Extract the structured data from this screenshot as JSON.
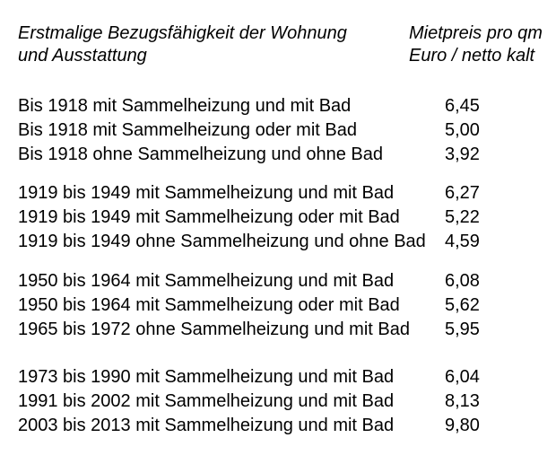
{
  "page": {
    "background_color": "#ffffff",
    "text_color": "#000000"
  },
  "header": {
    "left": [
      "Erstmalige Bezugsfähigkeit der Wohnung",
      "und Ausstattung"
    ],
    "right": [
      "Mietpreis pro qm",
      "Euro / netto kalt"
    ]
  },
  "groups": [
    {
      "rows": [
        {
          "label": "Bis 1918 mit Sammelheizung und mit Bad",
          "value": "6,45"
        },
        {
          "label": "Bis 1918 mit Sammelheizung oder mit Bad",
          "value": "5,00"
        },
        {
          "label": "Bis 1918 ohne Sammelheizung und ohne Bad",
          "value": "3,92"
        }
      ]
    },
    {
      "rows": [
        {
          "label": "1919 bis 1949 mit Sammelheizung und mit Bad",
          "value": "6,27"
        },
        {
          "label": "1919 bis 1949 mit Sammelheizung oder mit Bad",
          "value": "5,22"
        },
        {
          "label": "1919 bis 1949 ohne Sammelheizung und ohne Bad",
          "value": "4,59"
        }
      ]
    },
    {
      "rows": [
        {
          "label": "1950 bis 1964 mit Sammelheizung und mit Bad",
          "value": "6,08"
        },
        {
          "label": "1950 bis 1964 mit Sammelheizung oder mit Bad",
          "value": "5,62"
        },
        {
          "label": "1965 bis 1972 ohne Sammelheizung und mit Bad",
          "value": "5,95"
        }
      ]
    },
    {
      "rows": [
        {
          "label": "1973 bis 1990 mit Sammelheizung und mit Bad",
          "value": "6,04"
        },
        {
          "label": "1991 bis 2002 mit Sammelheizung und mit Bad",
          "value": "8,13"
        },
        {
          "label": "2003 bis 2013 mit Sammelheizung und mit Bad",
          "value": "9,80"
        }
      ]
    }
  ]
}
